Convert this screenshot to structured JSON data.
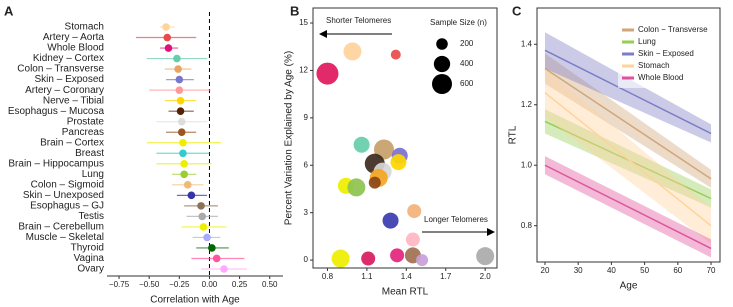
{
  "chart_data": [
    {
      "type": "forest",
      "panel": "A",
      "xlabel": "Correlation with Age",
      "categories": [
        "Stomach",
        "Artery – Aorta",
        "Whole Blood",
        "Kidney – Cortex",
        "Colon – Transverse",
        "Skin – Exposed",
        "Artery – Coronary",
        "Nerve – Tibial",
        "Esophagus – Mucosa",
        "Prostate",
        "Pancreas",
        "Brain – Cortex",
        "Breast",
        "Brain – Hippocampus",
        "Lung",
        "Colon – Sigmoid",
        "Skin – Unexposed",
        "Esophagus – GJ",
        "Testis",
        "Brain – Cerebellum",
        "Muscle – Skeletal",
        "Thyroid",
        "Vagina",
        "Ovary"
      ],
      "values": [
        -0.36,
        -0.35,
        -0.34,
        -0.27,
        -0.26,
        -0.25,
        -0.25,
        -0.24,
        -0.24,
        -0.23,
        -0.23,
        -0.22,
        -0.22,
        -0.21,
        -0.21,
        -0.18,
        -0.15,
        -0.07,
        -0.06,
        -0.05,
        -0.02,
        0.02,
        0.06,
        0.12
      ],
      "lower": [
        -0.41,
        -0.61,
        -0.41,
        -0.52,
        -0.37,
        -0.36,
        -0.5,
        -0.37,
        -0.34,
        -0.44,
        -0.36,
        -0.52,
        -0.44,
        -0.44,
        -0.31,
        -0.31,
        -0.27,
        -0.21,
        -0.19,
        -0.23,
        -0.14,
        -0.11,
        -0.15,
        -0.07
      ],
      "upper": [
        -0.29,
        -0.11,
        -0.26,
        -0.02,
        -0.15,
        -0.13,
        0.01,
        -0.11,
        -0.13,
        -0.02,
        -0.11,
        0.1,
        0.0,
        0.02,
        -0.11,
        -0.05,
        -0.02,
        0.07,
        0.07,
        0.14,
        0.09,
        0.16,
        0.29,
        0.31
      ],
      "colors": [
        "#ffd39b",
        "#e84a4a",
        "#e0107a",
        "#66cdaa",
        "#e8a462",
        "#7777cc",
        "#ff9999",
        "#ffd700",
        "#552200",
        "#dddddd",
        "#995522",
        "#eeee00",
        "#33cccc",
        "#eeee00",
        "#9acd32",
        "#eebb77",
        "#3333aa",
        "#8b7355",
        "#aaaaaa",
        "#eeee00",
        "#aaaaff",
        "#006600",
        "#ff5599",
        "#ffaaff"
      ],
      "xlim": [
        -0.85,
        0.61
      ],
      "xticks": [
        {
          "value": -0.75,
          "label": "−0.75"
        },
        {
          "value": -0.5,
          "label": "−0.50"
        },
        {
          "value": -0.25,
          "label": "−0.25"
        },
        {
          "value": 0,
          "label": "0.00"
        },
        0.25,
        {
          "value": 0.5,
          "label": "0.50"
        }
      ],
      "reference_line": 0
    },
    {
      "type": "bubble",
      "panel": "B",
      "xlabel": "Mean RTL",
      "ylabel": "Percent Variation Explained by Age (%)",
      "x": [
        0.99,
        1.32,
        0.8,
        1.06,
        1.23,
        1.35,
        1.16,
        1.22,
        1.19,
        1.34,
        0.94,
        1.02,
        1.16,
        1.28,
        1.46,
        1.45,
        1.33,
        1.45,
        1.52,
        0.9,
        2.0,
        1.11
      ],
      "y": [
        13.2,
        13.0,
        11.8,
        7.3,
        7.0,
        6.6,
        6.1,
        5.6,
        5.2,
        6.2,
        4.7,
        4.6,
        4.9,
        2.5,
        3.1,
        1.3,
        0.3,
        0.3,
        0,
        0.1,
        0.25,
        0.1
      ],
      "sizes": [
        486,
        150,
        726,
        384,
        600,
        384,
        600,
        486,
        486,
        384,
        384,
        486,
        216,
        384,
        294,
        294,
        294,
        384,
        216,
        486,
        486,
        294
      ],
      "colors": [
        "#ffd39b",
        "#e84a4a",
        "#e0185e",
        "#66cdaa",
        "#c8a06a",
        "#7b6fd0",
        "#3c2a1e",
        "#d8d8d8",
        "#f5a623",
        "#ffd700",
        "#eeee00",
        "#8dc34f",
        "#8b4513",
        "#3a3bb0",
        "#f3b27a",
        "#ffb6c1",
        "#e4237d",
        "#a07050",
        "#c8a0d8",
        "#eeee00",
        "#aaaaaa",
        "#d81b60"
      ],
      "xlim": [
        0.69,
        2.09
      ],
      "xticks": [
        0.8,
        1.1,
        1.4,
        1.7,
        {
          "value": 2.0,
          "label": "2.0"
        }
      ],
      "ylim": [
        -0.5,
        15.95
      ],
      "yticks": [
        0,
        3,
        6,
        9,
        12,
        15
      ],
      "size_legend": {
        "title": "Sample Size (n)",
        "values": [
          200,
          400,
          600
        ]
      },
      "annotations": [
        "Shorter Telomeres",
        "Longer Telomeres"
      ]
    },
    {
      "type": "band-line",
      "panel": "C",
      "xlabel": "Age",
      "ylabel": "RTL",
      "x": [
        20,
        70
      ],
      "series": [
        {
          "name": "Colon − Transverse",
          "color": "#d2a679",
          "values": [
            1.32,
            0.955
          ],
          "lower": [
            1.27,
            0.925
          ],
          "upper": [
            1.37,
            0.985
          ]
        },
        {
          "name": "Lung",
          "color": "#99cc55",
          "values": [
            1.145,
            0.89
          ],
          "lower": [
            1.105,
            0.86
          ],
          "upper": [
            1.185,
            0.92
          ]
        },
        {
          "name": "Skin − Exposed",
          "color": "#7d7cc6",
          "values": [
            1.38,
            1.105
          ],
          "lower": [
            1.32,
            1.075
          ],
          "upper": [
            1.44,
            1.135
          ]
        },
        {
          "name": "Stomach",
          "color": "#ffd39b",
          "values": [
            1.24,
            0.8
          ],
          "lower": [
            1.16,
            0.74
          ],
          "upper": [
            1.32,
            0.86
          ]
        },
        {
          "name": "Whole Blood",
          "color": "#e0529c",
          "values": [
            1.0,
            0.725
          ],
          "lower": [
            0.97,
            0.695
          ],
          "upper": [
            1.03,
            0.755
          ]
        }
      ],
      "xlim": [
        17.6,
        72.7
      ],
      "xticks": [
        20,
        30,
        40,
        50,
        60,
        70
      ],
      "ylim": [
        0.68,
        1.52
      ],
      "yticks": [
        0.8,
        {
          "value": 1.0,
          "label": "1.0"
        },
        1.2,
        1.4
      ]
    }
  ]
}
